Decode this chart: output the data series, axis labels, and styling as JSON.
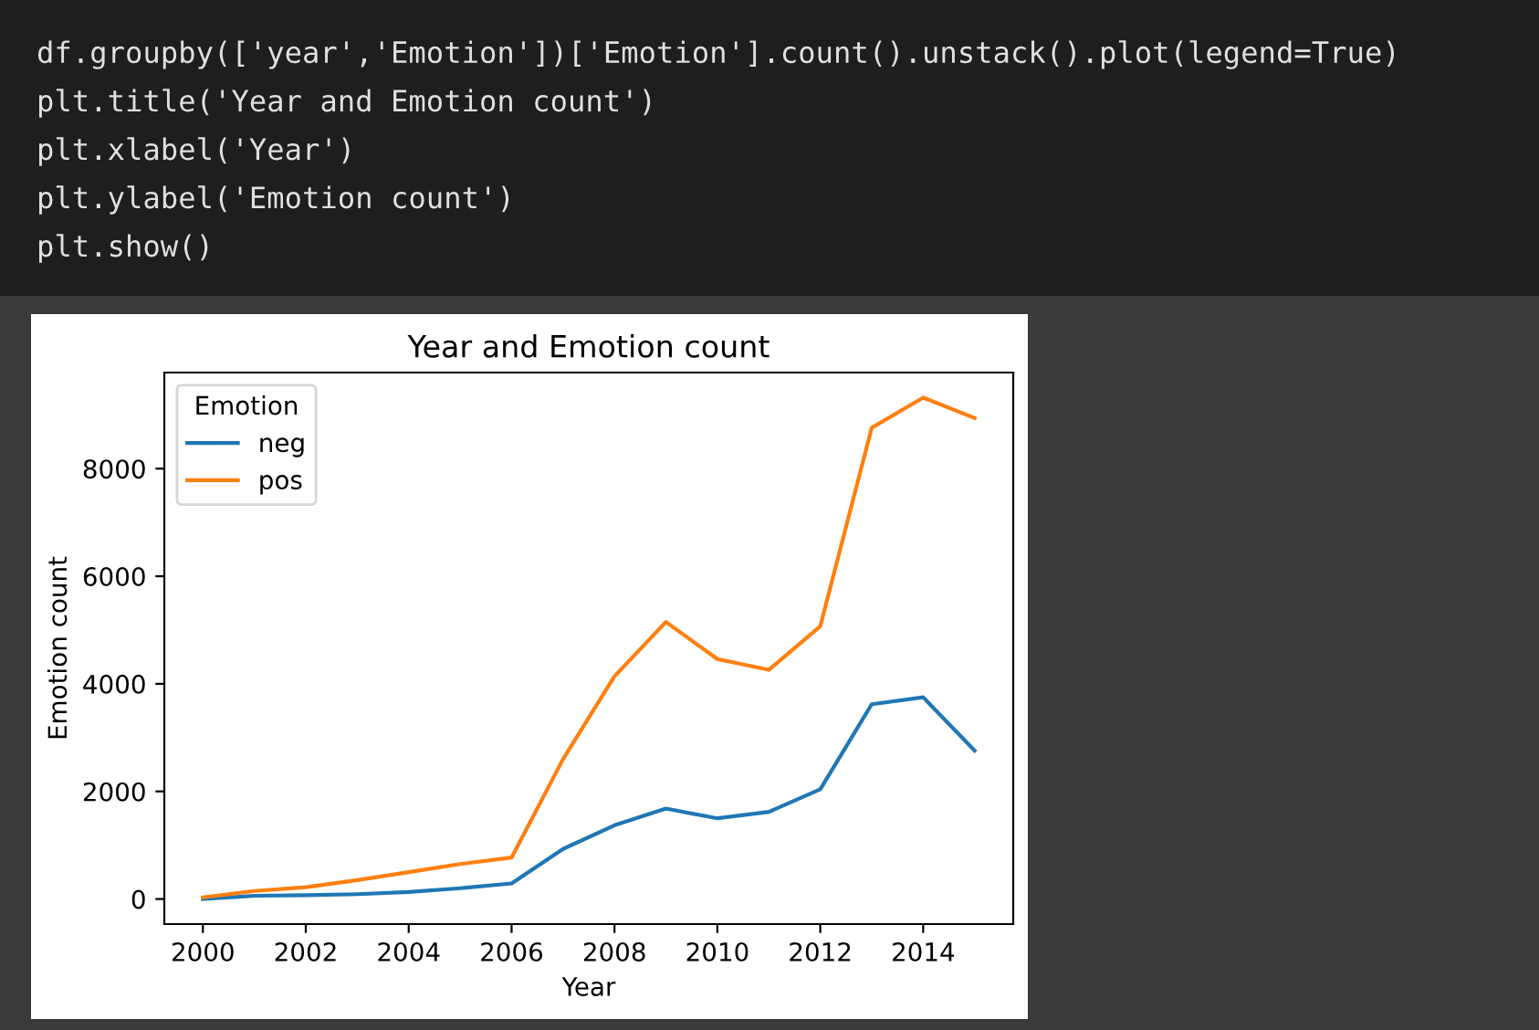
{
  "chart_data": {
    "type": "line",
    "title": "Year and Emotion count",
    "xlabel": "Year",
    "ylabel": "Emotion count",
    "legend_title": "Emotion",
    "annotations": [
      "df.groupby(['year','Emotion'])['Emotion'].count().unstack().plot(legend=True)",
      "plt.title('Year and Emotion count')",
      "plt.xlabel('Year')",
      "plt.ylabel('Emotion count')",
      "plt.show()"
    ],
    "x": [
      2000,
      2001,
      2002,
      2003,
      2004,
      2005,
      2006,
      2007,
      2008,
      2009,
      2010,
      2011,
      2012,
      2013,
      2014,
      2015
    ],
    "series": [
      {
        "name": "neg",
        "color": "#1f77b4",
        "values": [
          0,
          60,
          70,
          90,
          130,
          200,
          290,
          930,
          1370,
          1680,
          1500,
          1620,
          2040,
          3620,
          3750,
          2760
        ]
      },
      {
        "name": "pos",
        "color": "#ff7f0e",
        "values": [
          30,
          150,
          220,
          350,
          500,
          650,
          770,
          2600,
          4140,
          5150,
          4460,
          4260,
          5070,
          8760,
          9320,
          8940
        ]
      }
    ],
    "xlim": [
      1999.25,
      2015.75
    ],
    "ylim": [
      -466,
      9786
    ],
    "xticks": [
      2000,
      2002,
      2004,
      2006,
      2008,
      2010,
      2012,
      2014
    ],
    "yticks": [
      0,
      2000,
      4000,
      6000,
      8000
    ],
    "grid": false,
    "legend": "top left",
    "marker": "none",
    "line_style": "solid"
  }
}
